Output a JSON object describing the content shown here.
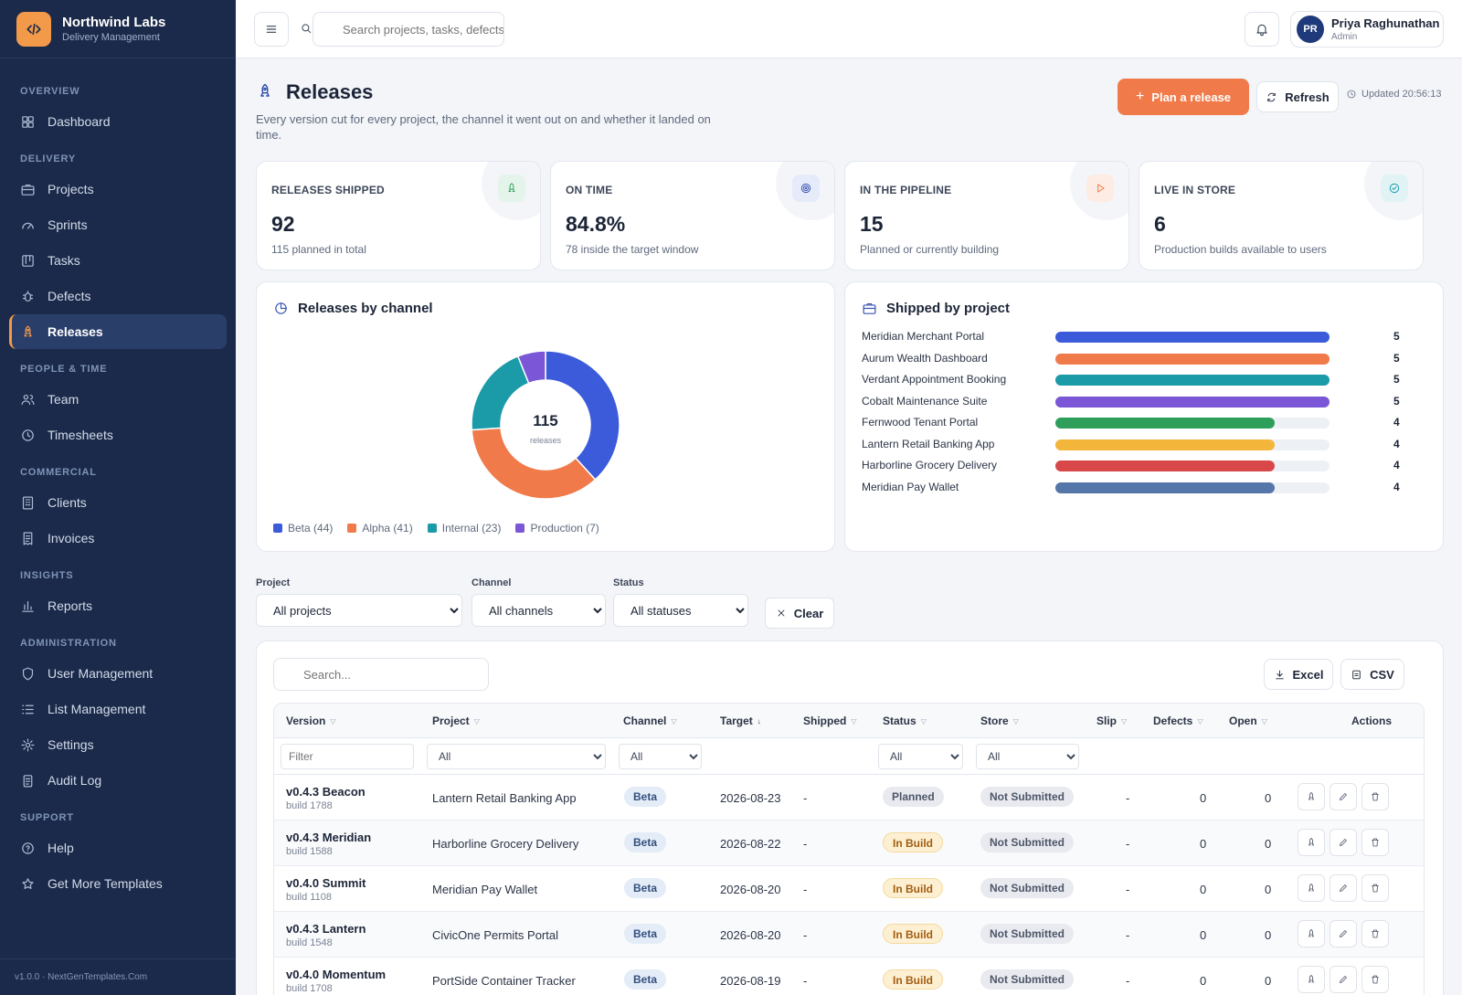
{
  "brand": {
    "name": "Northwind Labs",
    "subtitle": "Delivery Management"
  },
  "nav": {
    "sections": {
      "overview": "OVERVIEW",
      "delivery": "DELIVERY",
      "people": "PEOPLE & TIME",
      "commercial": "COMMERCIAL",
      "insights": "INSIGHTS",
      "administration": "ADMINISTRATION",
      "support": "SUPPORT"
    },
    "items": {
      "dashboard": "Dashboard",
      "projects": "Projects",
      "sprints": "Sprints",
      "tasks": "Tasks",
      "defects": "Defects",
      "releases": "Releases",
      "team": "Team",
      "timesheets": "Timesheets",
      "clients": "Clients",
      "invoices": "Invoices",
      "reports": "Reports",
      "user_management": "User Management",
      "list_management": "List Management",
      "settings": "Settings",
      "audit_log": "Audit Log",
      "help": "Help",
      "templates": "Get More Templates"
    },
    "active": "Releases",
    "footer": "v1.0.0 · NextGenTemplates.Com"
  },
  "topbar": {
    "search_placeholder": "Search projects, tasks, defects",
    "user": {
      "initials": "PR",
      "name": "Priya Raghunathan",
      "role": "Admin"
    }
  },
  "page": {
    "title": "Releases",
    "subtitle": "Every version cut for every project, the channel it went out on and whether it landed on time.",
    "primary_action": "Plan a release",
    "refresh": "Refresh",
    "updated": "Updated 20:56:13"
  },
  "kpis": [
    {
      "label": "RELEASES SHIPPED",
      "value": "92",
      "foot": "115 planned in total",
      "icon": "rocket-icon",
      "color": "#2e9e5b"
    },
    {
      "label": "ON TIME",
      "value": "84.8%",
      "foot": "78 inside the target window",
      "icon": "target-icon",
      "color": "#3a57b4"
    },
    {
      "label": "IN THE PIPELINE",
      "value": "15",
      "foot": "Planned or currently building",
      "icon": "play-icon",
      "color": "#f07a4a"
    },
    {
      "label": "LIVE IN STORE",
      "value": "6",
      "foot": "Production builds available to users",
      "icon": "check-circle-icon",
      "color": "#1b9aa8"
    }
  ],
  "channel_chart": {
    "title": "Releases by channel",
    "center_value": "115",
    "center_label": "releases",
    "legend": [
      "Beta (44)",
      "Alpha (41)",
      "Internal (23)",
      "Production (7)"
    ]
  },
  "project_chart": {
    "title": "Shipped by project"
  },
  "chart_data": [
    {
      "type": "pie",
      "title": "Releases by channel",
      "categories": [
        "Beta",
        "Alpha",
        "Internal",
        "Production"
      ],
      "values": [
        44,
        41,
        23,
        7
      ],
      "colors": [
        "#3b5bdb",
        "#f07a4a",
        "#1b9aa8",
        "#7b56d6"
      ]
    },
    {
      "type": "bar",
      "title": "Shipped by project",
      "categories": [
        "Meridian Merchant Portal",
        "Aurum Wealth Dashboard",
        "Verdant Appointment Booking",
        "Cobalt Maintenance Suite",
        "Fernwood Tenant Portal",
        "Lantern Retail Banking App",
        "Harborline Grocery Delivery",
        "Meridian Pay Wallet"
      ],
      "values": [
        5,
        5,
        5,
        5,
        4,
        4,
        4,
        4
      ],
      "colors": [
        "#3b5bdb",
        "#f07a4a",
        "#1b9aa8",
        "#7b56d6",
        "#2e9e5b",
        "#f4b63a",
        "#d94848",
        "#5576a8"
      ],
      "xlim": [
        0,
        5
      ]
    }
  ],
  "filters": {
    "project_label": "Project",
    "project_value": "All projects",
    "channel_label": "Channel",
    "channel_value": "All channels",
    "status_label": "Status",
    "status_value": "All statuses",
    "clear": "Clear"
  },
  "table": {
    "search_placeholder": "Search...",
    "excel": "Excel",
    "csv": "CSV",
    "headers": [
      "Version",
      "Project",
      "Channel",
      "Target",
      "Shipped",
      "Status",
      "Store",
      "Slip",
      "Defects",
      "Open",
      "Actions"
    ],
    "filter_placeholder": "Filter",
    "filter_all": "All",
    "rows": [
      {
        "version": "v0.4.3 Beacon",
        "build": "build 1788",
        "project": "Lantern Retail Banking App",
        "channel": "Beta",
        "target": "2026-08-23",
        "shipped": "-",
        "status": "Planned",
        "store": "Not Submitted",
        "slip": "-",
        "defects": "0",
        "open": "0"
      },
      {
        "version": "v0.4.3 Meridian",
        "build": "build 1588",
        "project": "Harborline Grocery Delivery",
        "channel": "Beta",
        "target": "2026-08-22",
        "shipped": "-",
        "status": "In Build",
        "store": "Not Submitted",
        "slip": "-",
        "defects": "0",
        "open": "0"
      },
      {
        "version": "v0.4.0 Summit",
        "build": "build 1108",
        "project": "Meridian Pay Wallet",
        "channel": "Beta",
        "target": "2026-08-20",
        "shipped": "-",
        "status": "In Build",
        "store": "Not Submitted",
        "slip": "-",
        "defects": "0",
        "open": "0"
      },
      {
        "version": "v0.4.3 Lantern",
        "build": "build 1548",
        "project": "CivicOne Permits Portal",
        "channel": "Beta",
        "target": "2026-08-20",
        "shipped": "-",
        "status": "In Build",
        "store": "Not Submitted",
        "slip": "-",
        "defects": "0",
        "open": "0"
      },
      {
        "version": "v0.4.0 Momentum",
        "build": "build 1708",
        "project": "PortSide Container Tracker",
        "channel": "Beta",
        "target": "2026-08-19",
        "shipped": "-",
        "status": "In Build",
        "store": "Not Submitted",
        "slip": "-",
        "defects": "0",
        "open": "0"
      }
    ]
  }
}
